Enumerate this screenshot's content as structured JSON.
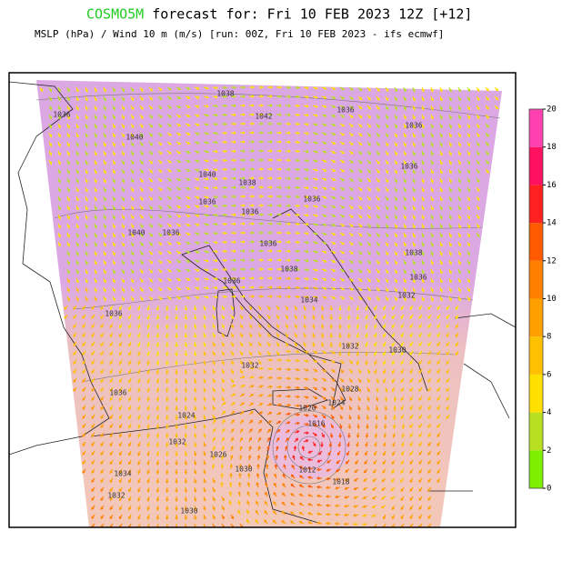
{
  "header": {
    "model": "COSMO5M",
    "title": "forecast for: Fri 10 FEB 2023 12Z [+12]",
    "subtitle": "MSLP (hPa) / Wind 10 m (m/s) [run: 00Z, Fri 10 FEB 2023 - ifs ecmwf]"
  },
  "isobar_labels": [
    1038,
    1036,
    1042,
    1036,
    1036,
    1040,
    1036,
    1040,
    1038,
    1036,
    1036,
    1036,
    1040,
    1036,
    1036,
    1038,
    1038,
    1036,
    1036,
    1034,
    1032,
    1036,
    1032,
    1030,
    1032,
    1036,
    1028,
    1024,
    1020,
    1016,
    1024,
    1032,
    1026,
    1030,
    1012,
    1018,
    1034,
    1032,
    1030
  ],
  "colorbar": {
    "ticks": [
      0,
      2,
      4,
      6,
      8,
      10,
      12,
      14,
      16,
      18,
      20
    ],
    "range": [
      0,
      20
    ],
    "colors": [
      "#7cf000",
      "#b8e020",
      "#ffe000",
      "#ffc000",
      "#ffa000",
      "#ff8000",
      "#ff5a00",
      "#ff2020",
      "#ff1060",
      "#ff40b0"
    ]
  }
}
